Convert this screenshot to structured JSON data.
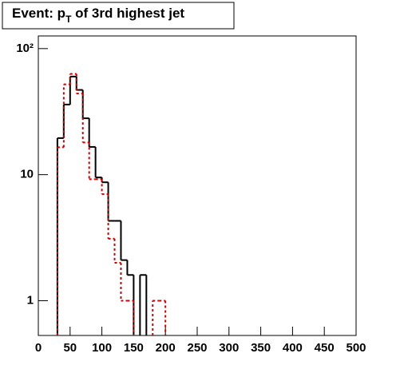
{
  "chart_data": {
    "type": "histogram",
    "title": [
      "Event: p",
      "T",
      " of 3rd highest jet"
    ],
    "bins": [
      0,
      10,
      20,
      30,
      40,
      50,
      60,
      70,
      80,
      90,
      100,
      110,
      120,
      130,
      140,
      150,
      160,
      170,
      180,
      190,
      200,
      210,
      220,
      230,
      240,
      250,
      260,
      270,
      280,
      290,
      300,
      310,
      320,
      330,
      340,
      350,
      360,
      370,
      380,
      390,
      400,
      410,
      420,
      430,
      440,
      450,
      460,
      470,
      480,
      490,
      500
    ],
    "series": [
      {
        "color": "#000000",
        "dash": false,
        "values": [
          0,
          0,
          0,
          19.5,
          36,
          60,
          47,
          28,
          16.6,
          9.5,
          8.7,
          4.3,
          4.3,
          2.1,
          1.6,
          0,
          1.6,
          0,
          0,
          0,
          0,
          0,
          0,
          0,
          0,
          0,
          0,
          0,
          0,
          0,
          0,
          0,
          0,
          0,
          0,
          0,
          0,
          0,
          0,
          0,
          0,
          0,
          0,
          0,
          0,
          0,
          0,
          0,
          0,
          0
        ]
      },
      {
        "color": "#cc0000",
        "dash": true,
        "values": [
          0,
          0,
          0,
          16.5,
          52,
          63,
          44,
          18,
          9.2,
          9.2,
          7.0,
          3.1,
          2.0,
          1.0,
          1.0,
          0,
          0,
          0,
          1.0,
          1.0,
          0,
          0,
          0,
          0,
          0,
          0,
          0,
          0,
          0,
          0,
          0,
          0,
          0,
          0,
          0,
          0,
          0,
          0,
          0,
          0,
          0,
          0,
          0,
          0,
          0,
          0,
          0,
          0,
          0,
          0
        ]
      }
    ],
    "xlim": [
      0,
      500
    ],
    "xticks": [
      0,
      50,
      100,
      150,
      200,
      250,
      300,
      350,
      400,
      450,
      500
    ],
    "ylim": [
      0.53,
      126
    ],
    "log_y": true,
    "yticks": [
      1,
      10,
      {
        "value": 100,
        "label": "10²"
      }
    ]
  }
}
